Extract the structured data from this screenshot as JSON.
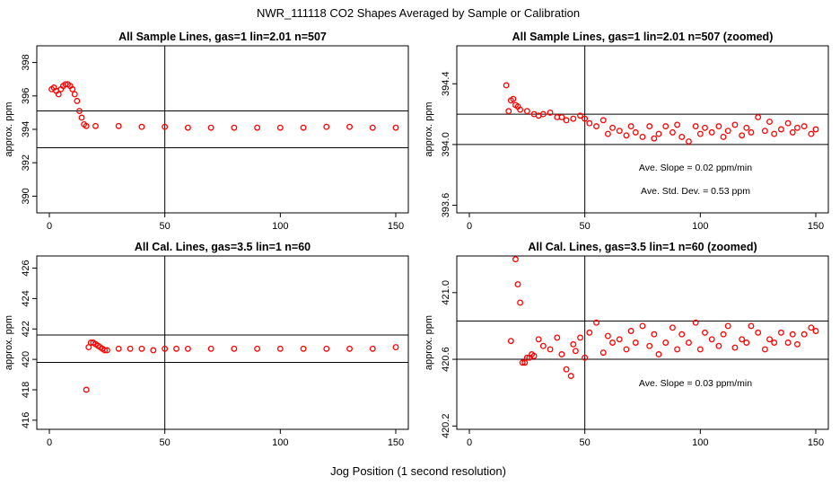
{
  "main_title": "NWR_111118  CO2 Shapes Averaged by Sample or Calibration",
  "x_axis_label": "Jog Position (1 second resolution)",
  "chart_data": [
    {
      "type": "scatter",
      "title": "All Sample Lines, gas=1 lin=2.01 n=507",
      "ylabel": "approx. ppm",
      "xlim": [
        0,
        150
      ],
      "ylim": [
        389,
        399
      ],
      "xticks": [
        0,
        50,
        100,
        150
      ],
      "yticks": [
        390,
        392,
        394,
        396,
        398
      ],
      "vline": 50,
      "hlines": [
        392.9,
        395.1
      ],
      "color": "#ff0000",
      "annotations": [],
      "series": [
        {
          "x": [
            1,
            2,
            3,
            4,
            5,
            6,
            7,
            8,
            9,
            10,
            11,
            12,
            13,
            14,
            15,
            16,
            20,
            30,
            40,
            50,
            60,
            70,
            80,
            90,
            100,
            110,
            120,
            130,
            140,
            150
          ],
          "y": [
            396.4,
            396.5,
            396.3,
            396.1,
            396.4,
            396.6,
            396.7,
            396.7,
            396.6,
            396.4,
            396.1,
            395.7,
            395.1,
            394.7,
            394.3,
            394.2,
            394.2,
            394.2,
            394.15,
            394.15,
            394.1,
            394.1,
            394.1,
            394.1,
            394.1,
            394.1,
            394.15,
            394.15,
            394.1,
            394.1
          ]
        }
      ]
    },
    {
      "type": "scatter",
      "title": "All Sample Lines, gas=1 lin=2.01 n=507 (zoomed)",
      "ylabel": "approx. ppm",
      "xlim": [
        0,
        150
      ],
      "ylim": [
        393.55,
        394.65
      ],
      "xticks": [
        0,
        50,
        100,
        150
      ],
      "yticks": [
        393.6,
        394.0,
        394.4
      ],
      "vline": 50,
      "hlines": [
        394.0,
        394.2
      ],
      "color": "#ff0000",
      "annotations": [
        "Ave. Slope =  0.02  ppm/min",
        "Ave. Std. Dev. =  0.53  ppm"
      ],
      "series": [
        {
          "x": [
            16,
            17,
            18,
            19,
            20,
            21,
            22,
            25,
            28,
            30,
            32,
            35,
            38,
            40,
            42,
            45,
            48,
            50,
            52,
            55,
            58,
            60,
            62,
            65,
            68,
            70,
            72,
            75,
            78,
            80,
            82,
            85,
            88,
            90,
            92,
            95,
            98,
            100,
            102,
            105,
            108,
            110,
            112,
            115,
            118,
            120,
            122,
            125,
            128,
            130,
            132,
            135,
            138,
            140,
            142,
            145,
            148,
            150
          ],
          "y": [
            394.39,
            394.22,
            394.29,
            394.3,
            394.26,
            394.25,
            394.23,
            394.22,
            394.2,
            394.19,
            394.2,
            394.21,
            394.18,
            394.18,
            394.16,
            394.17,
            394.19,
            394.17,
            394.14,
            394.12,
            394.16,
            394.07,
            394.11,
            394.09,
            394.06,
            394.12,
            394.08,
            394.05,
            394.12,
            394.04,
            394.07,
            394.12,
            394.08,
            394.13,
            394.05,
            394.02,
            394.12,
            394.07,
            394.11,
            394.08,
            394.12,
            394.05,
            394.09,
            394.13,
            394.06,
            394.11,
            394.08,
            394.18,
            394.09,
            394.15,
            394.07,
            394.1,
            394.14,
            394.08,
            394.11,
            394.12,
            394.07,
            394.1
          ]
        }
      ]
    },
    {
      "type": "scatter",
      "title": "All Cal. Lines, gas=3.5 lin=1 n=60",
      "ylabel": "approx. ppm",
      "xlim": [
        0,
        150
      ],
      "ylim": [
        415.4,
        426.8
      ],
      "xticks": [
        0,
        50,
        100,
        150
      ],
      "yticks": [
        416,
        418,
        420,
        422,
        424,
        426
      ],
      "vline": 50,
      "hlines": [
        419.8,
        421.6
      ],
      "color": "#ff0000",
      "annotations": [],
      "series": [
        {
          "x": [
            16,
            17,
            18,
            19,
            20,
            21,
            22,
            23,
            24,
            25,
            30,
            35,
            40,
            45,
            50,
            55,
            60,
            70,
            80,
            90,
            100,
            110,
            120,
            130,
            140,
            150
          ],
          "y": [
            418.0,
            420.8,
            421.1,
            421.1,
            421.0,
            420.9,
            420.8,
            420.7,
            420.6,
            420.6,
            420.7,
            420.7,
            420.7,
            420.6,
            420.7,
            420.7,
            420.7,
            420.7,
            420.7,
            420.7,
            420.7,
            420.7,
            420.7,
            420.7,
            420.7,
            420.8
          ]
        }
      ]
    },
    {
      "type": "scatter",
      "title": "All Cal. Lines, gas=3.5 lin=1 n=60 (zoomed)",
      "ylabel": "approx. ppm",
      "xlim": [
        0,
        150
      ],
      "ylim": [
        420.18,
        421.22
      ],
      "xticks": [
        0,
        50,
        100,
        150
      ],
      "yticks": [
        420.2,
        420.6,
        421.0
      ],
      "vline": 50,
      "hlines": [
        420.6,
        420.83
      ],
      "color": "#ff0000",
      "annotations": [
        "Ave. Slope =  0.03  ppm/min"
      ],
      "series": [
        {
          "x": [
            18,
            20,
            21,
            22,
            23,
            24,
            25,
            26,
            27,
            28,
            30,
            32,
            35,
            38,
            40,
            42,
            44,
            45,
            46,
            48,
            50,
            52,
            55,
            58,
            60,
            62,
            65,
            68,
            70,
            72,
            75,
            78,
            80,
            82,
            85,
            88,
            90,
            92,
            95,
            98,
            100,
            102,
            105,
            108,
            110,
            112,
            115,
            118,
            120,
            122,
            125,
            128,
            130,
            132,
            135,
            138,
            140,
            142,
            145,
            148,
            150
          ],
          "y": [
            420.71,
            421.2,
            421.05,
            420.94,
            420.58,
            420.58,
            420.61,
            420.61,
            420.63,
            420.62,
            420.72,
            420.68,
            420.66,
            420.73,
            420.63,
            420.54,
            420.5,
            420.69,
            420.65,
            420.73,
            420.61,
            420.76,
            420.82,
            420.64,
            420.74,
            420.7,
            420.72,
            420.66,
            420.77,
            420.7,
            420.8,
            420.68,
            420.75,
            420.63,
            420.7,
            420.79,
            420.66,
            420.75,
            420.7,
            420.82,
            420.66,
            420.76,
            420.72,
            420.68,
            420.75,
            420.8,
            420.67,
            420.72,
            420.7,
            420.8,
            420.76,
            420.66,
            420.72,
            420.7,
            420.76,
            420.7,
            420.75,
            420.69,
            420.75,
            420.79,
            420.77
          ]
        }
      ]
    }
  ]
}
